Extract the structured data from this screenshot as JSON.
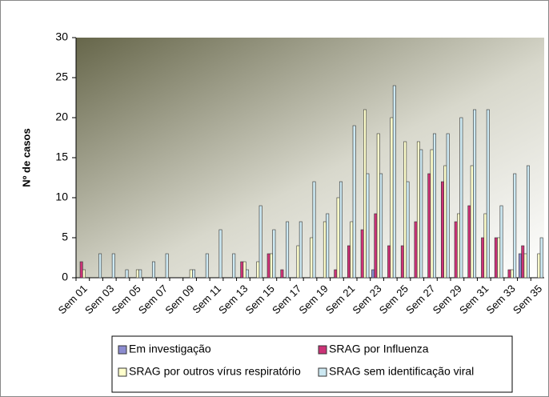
{
  "chart_data": {
    "type": "bar",
    "ylabel": "Nº de casos",
    "categories": [
      "Sem 01",
      null,
      "Sem 03",
      null,
      "Sem 05",
      null,
      "Sem 07",
      null,
      "Sem 09",
      null,
      "Sem 11",
      null,
      "Sem 13",
      null,
      "Sem 15",
      null,
      "Sem 17",
      null,
      "Sem 19",
      null,
      "Sem 21",
      null,
      "Sem 23",
      null,
      "Sem 25",
      null,
      "Sem 27",
      null,
      "Sem 29",
      null,
      "Sem 31",
      null,
      "Sem 33",
      null,
      "Sem 35"
    ],
    "series": [
      {
        "name": "Em investigação",
        "color": "#8c8cd0",
        "values": [
          0,
          0,
          0,
          0,
          0,
          0,
          0,
          0,
          0,
          0,
          0,
          0,
          0,
          0,
          0,
          0,
          0,
          0,
          0,
          0,
          0,
          0,
          1,
          0,
          0,
          0,
          0,
          0,
          0,
          0,
          0,
          0,
          0,
          3,
          0
        ]
      },
      {
        "name": "SRAG por Influenza",
        "color": "#cc3377",
        "values": [
          2,
          0,
          0,
          0,
          0,
          0,
          0,
          0,
          0,
          0,
          0,
          0,
          2,
          0,
          3,
          1,
          0,
          0,
          0,
          1,
          4,
          6,
          8,
          4,
          4,
          7,
          13,
          12,
          7,
          9,
          5,
          5,
          1,
          4,
          0
        ]
      },
      {
        "name": "SRAG por outros vírus respiratório",
        "color": "#ffffcc",
        "values": [
          1,
          0,
          0,
          0,
          1,
          0,
          0,
          0,
          1,
          0,
          0,
          0,
          2,
          2,
          3,
          0,
          4,
          5,
          7,
          10,
          7,
          21,
          18,
          20,
          17,
          17,
          16,
          14,
          8,
          14,
          8,
          5,
          1,
          3,
          3
        ]
      },
      {
        "name": "SRAG sem identificação viral",
        "color": "#cce8f2",
        "values": [
          0,
          3,
          3,
          1,
          1,
          2,
          3,
          0,
          1,
          3,
          6,
          3,
          1,
          9,
          6,
          7,
          7,
          12,
          8,
          12,
          19,
          13,
          13,
          24,
          12,
          16,
          18,
          18,
          20,
          21,
          21,
          9,
          13,
          14,
          5
        ]
      }
    ],
    "ylim": [
      0,
      30
    ],
    "yticks": [
      0,
      5,
      10,
      15,
      20,
      25,
      30
    ],
    "legend": "bottom"
  }
}
